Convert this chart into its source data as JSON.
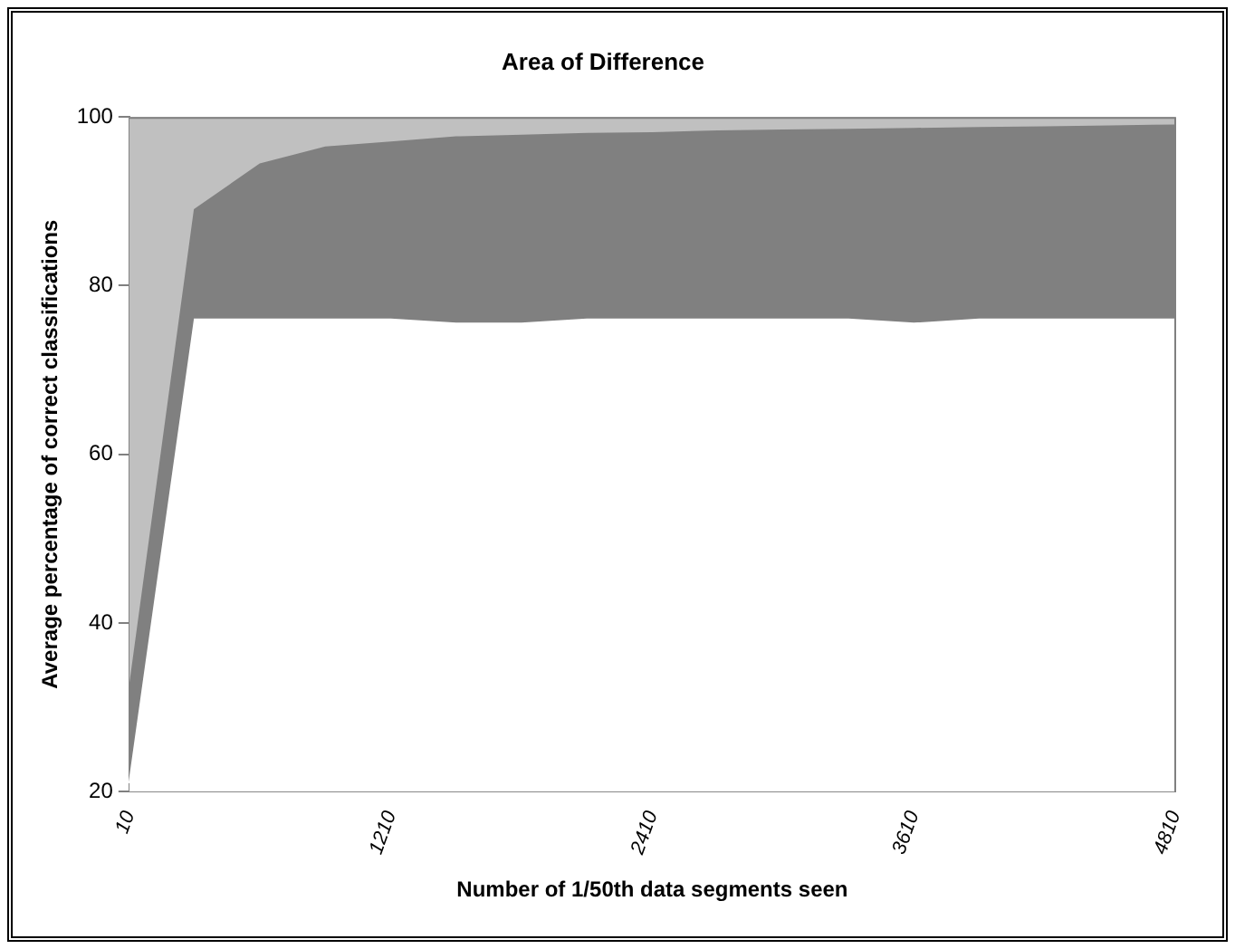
{
  "chart_data": {
    "type": "area",
    "title": "Area of Difference",
    "xlabel": "Number of 1/50th data segments seen",
    "ylabel": "Average percentage of correct classifications",
    "categories": [
      "10",
      null,
      null,
      null,
      "1210",
      null,
      null,
      null,
      "2410",
      null,
      null,
      null,
      "3610",
      null,
      null,
      null,
      "4810"
    ],
    "series": [
      {
        "color": "#ffffff",
        "values": [
          21,
          76,
          76,
          76,
          76,
          75.5,
          75.5,
          76,
          76,
          76,
          76,
          76,
          75.5,
          76,
          76,
          76,
          76
        ]
      },
      {
        "color": "#808080",
        "values": [
          32,
          89,
          94.4,
          96.4,
          97,
          97.6,
          97.8,
          98,
          98.1,
          98.3,
          98.4,
          98.5,
          98.6,
          98.7,
          98.8,
          98.9,
          99
        ]
      },
      {
        "color": "#c0c0c0",
        "values": [
          100,
          100,
          100,
          100,
          100,
          100,
          100,
          100,
          100,
          100,
          100,
          100,
          100,
          100,
          100,
          100,
          100
        ]
      }
    ],
    "ylim": [
      20,
      100
    ],
    "yticks": [
      20,
      40,
      60,
      80,
      100
    ],
    "grid": false,
    "legend": false
  }
}
